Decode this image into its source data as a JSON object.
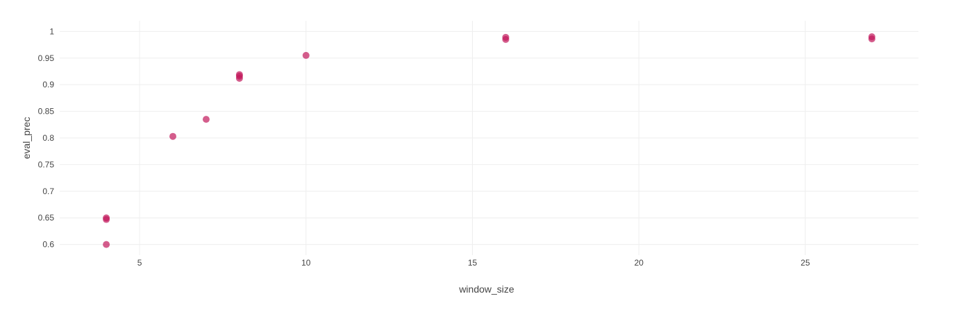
{
  "chart_data": {
    "type": "scatter",
    "title": "",
    "xlabel": "window_size",
    "ylabel": "eval_prec",
    "xlim": [
      2.6,
      28.4
    ],
    "ylim": [
      0.58,
      1.02
    ],
    "grid": true,
    "legend": "none",
    "marker_color": "#c2185b",
    "gridline_color": "#eeeeee",
    "text_color": "#444444",
    "x_ticks": [
      5,
      10,
      15,
      20,
      25
    ],
    "x_tick_labels": [
      "5",
      "10",
      "15",
      "20",
      "25"
    ],
    "y_ticks": [
      0.6,
      0.65,
      0.7,
      0.75,
      0.8,
      0.85,
      0.9,
      0.95,
      1
    ],
    "y_tick_labels": [
      "0.6",
      "0.65",
      "0.7",
      "0.75",
      "0.8",
      "0.85",
      "0.9",
      "0.95",
      "1"
    ],
    "series": [
      {
        "x": [
          4,
          4,
          4,
          6,
          7,
          8,
          8,
          8,
          10,
          16,
          16,
          27,
          27
        ],
        "y": [
          0.6,
          0.647,
          0.65,
          0.803,
          0.835,
          0.912,
          0.916,
          0.919,
          0.955,
          0.985,
          0.989,
          0.986,
          0.99
        ]
      }
    ]
  }
}
